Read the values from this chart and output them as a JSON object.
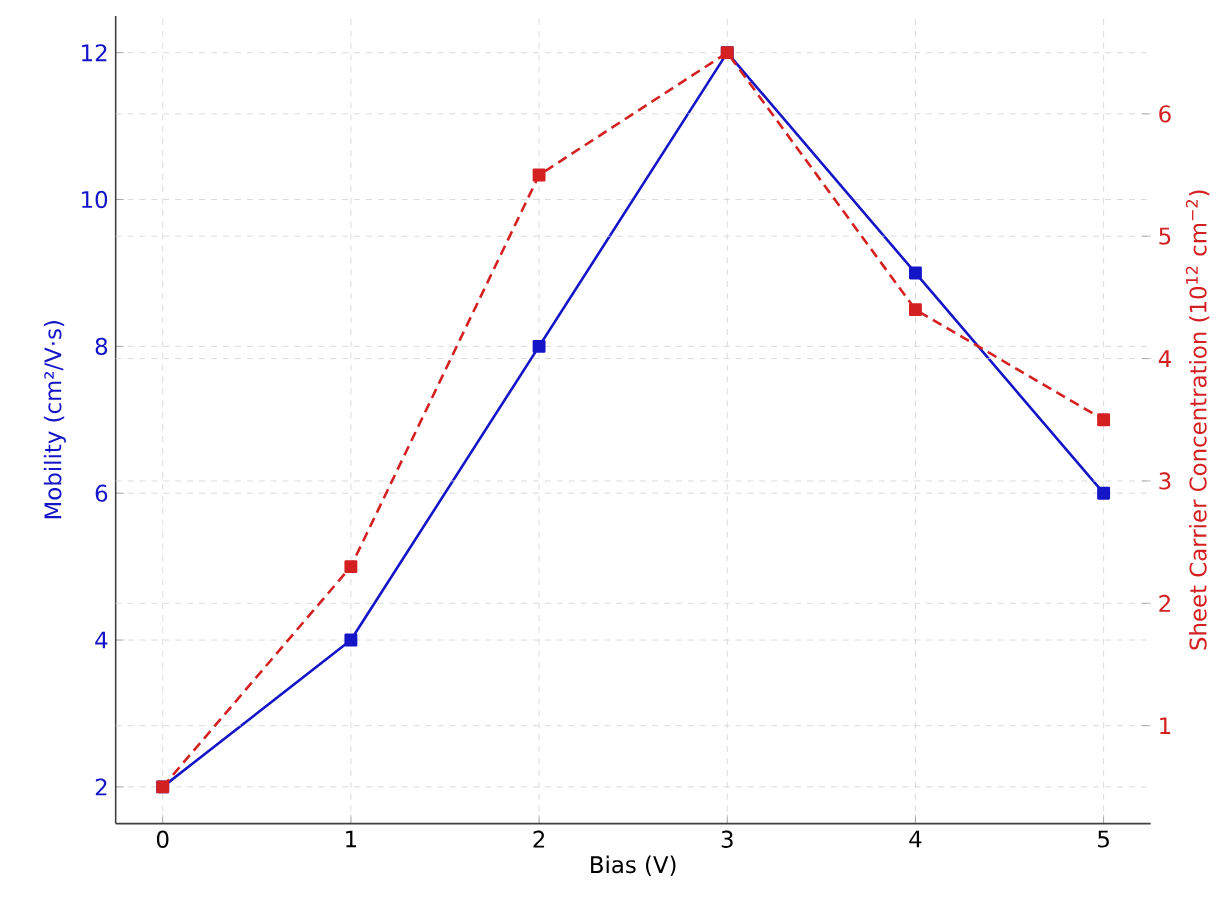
{
  "chart_data": {
    "type": "line",
    "xlabel": "Bias (V)",
    "ylabel": "Mobility (cm²/V·s)",
    "y2label": "Sheet Carrier Concentration (10$^{12}$ cm$^{−2}$)",
    "x": [
      0,
      1,
      2,
      3,
      4,
      5
    ],
    "series": [
      {
        "color": "#1515c8",
        "values": [
          2,
          4,
          8,
          12,
          9,
          6
        ],
        "line_style": "solid"
      },
      {
        "color": "#d42020",
        "values": [
          0.5,
          2.3,
          5.5,
          6.5,
          4.4,
          3.5
        ],
        "axis": "y2",
        "line_style": "dashed"
      }
    ],
    "xlim": [
      -0.25,
      5.25
    ],
    "xticks": [
      0,
      1,
      2,
      3,
      4,
      5
    ],
    "ylim": [
      1.5,
      12.5
    ],
    "yticks": [
      2,
      4,
      6,
      8,
      10,
      12
    ],
    "y2lim": [
      0.2,
      6.8
    ],
    "y2ticks": [
      1,
      2,
      3,
      4,
      5,
      6
    ],
    "grid": true,
    "marker": "square"
  }
}
